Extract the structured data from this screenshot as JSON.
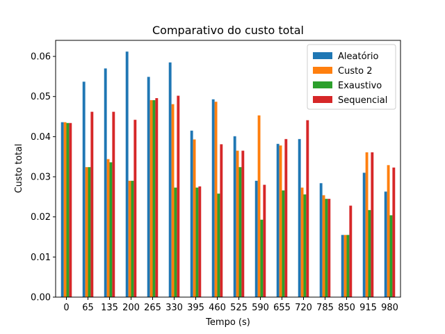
{
  "chart_data": {
    "type": "bar",
    "title": "Comparativo do custo total",
    "xlabel": "Tempo (s)",
    "ylabel": "Custo total",
    "ylim": [
      0,
      0.064
    ],
    "yticks": [
      "0.00",
      "0.01",
      "0.02",
      "0.03",
      "0.04",
      "0.05",
      "0.06"
    ],
    "legend_position": "top-right",
    "grid": false,
    "categories": [
      "0",
      "65",
      "135",
      "200",
      "265",
      "330",
      "395",
      "460",
      "525",
      "590",
      "655",
      "720",
      "785",
      "850",
      "915",
      "980"
    ],
    "series": [
      {
        "name": "Aleatório",
        "color": "#1f77b4",
        "values": [
          0.0436,
          0.0537,
          0.057,
          0.0612,
          0.0549,
          0.0585,
          0.0415,
          0.0493,
          0.0401,
          0.029,
          0.0382,
          0.0394,
          0.0284,
          0.0155,
          0.031,
          0.0263
        ]
      },
      {
        "name": "Custo 2",
        "color": "#ff7f0e",
        "values": [
          0.0436,
          0.0324,
          0.0344,
          0.029,
          0.0491,
          0.0481,
          0.0393,
          0.0487,
          0.0365,
          0.0453,
          0.0378,
          0.0273,
          0.0254,
          0.0155,
          0.0361,
          0.0329
        ]
      },
      {
        "name": "Exaustivo",
        "color": "#2ca02c",
        "values": [
          0.0434,
          0.0324,
          0.0336,
          0.029,
          0.0491,
          0.0273,
          0.0273,
          0.0258,
          0.0324,
          0.0193,
          0.0266,
          0.0256,
          0.0245,
          0.0155,
          0.0217,
          0.0204
        ]
      },
      {
        "name": "Sequencial",
        "color": "#d62728",
        "values": [
          0.0434,
          0.0462,
          0.0462,
          0.0442,
          0.0496,
          0.0502,
          0.0276,
          0.0381,
          0.0365,
          0.028,
          0.0394,
          0.0441,
          0.0245,
          0.0228,
          0.0361,
          0.0323
        ]
      }
    ]
  }
}
